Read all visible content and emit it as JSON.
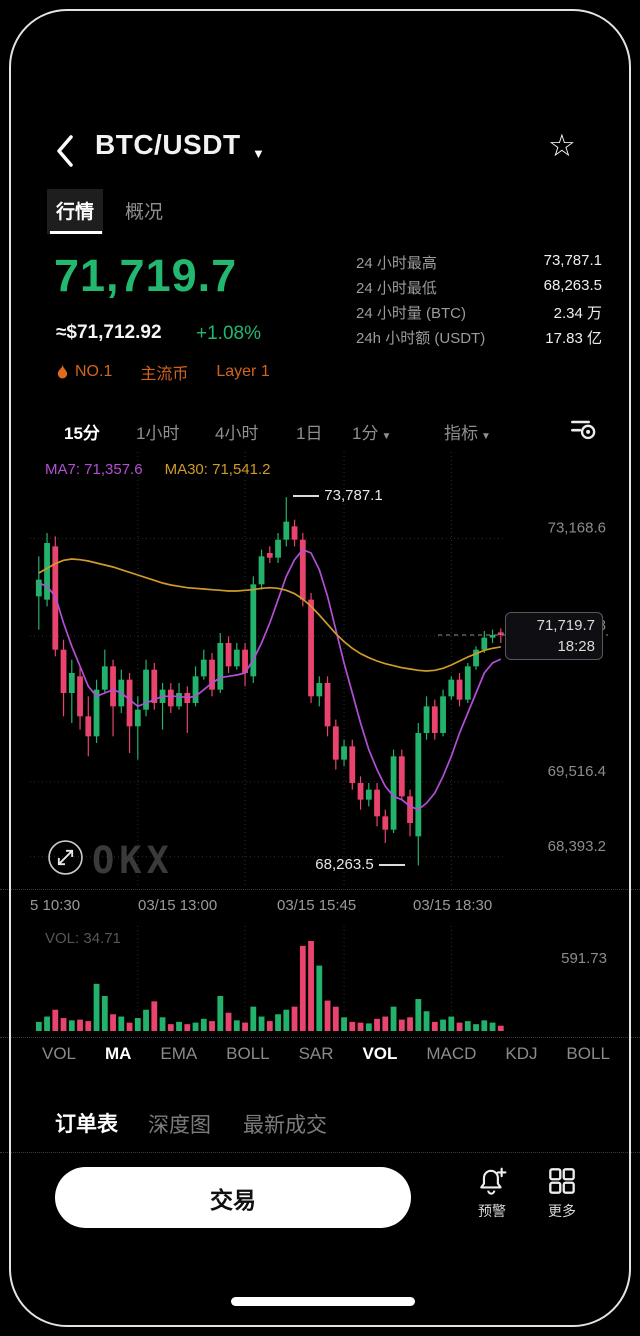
{
  "header": {
    "title": "BTC/USDT"
  },
  "tabs": {
    "items": [
      {
        "label": "行情"
      },
      {
        "label": "概况"
      }
    ]
  },
  "price": {
    "last": "71,719.7",
    "fiat": "≈$71,712.92",
    "change": "+1.08%"
  },
  "badges": {
    "rank": "NO.1",
    "tag1": "主流币",
    "tag2": "Layer 1"
  },
  "stats": {
    "rows": [
      {
        "label": "24 小时最高",
        "value": "73,787.1"
      },
      {
        "label": "24 小时最低",
        "value": "68,263.5"
      },
      {
        "label": "24 小时量 (BTC)",
        "value": "2.34 万"
      },
      {
        "label": "24h 小时额 (USDT)",
        "value": "17.83 亿"
      }
    ]
  },
  "intervals": {
    "i0": "15分",
    "i1": "1小时",
    "i2": "4小时",
    "i3": "1日",
    "d1": "1分",
    "d2": "指标"
  },
  "indicators": {
    "items": [
      "VOL",
      "MA",
      "EMA",
      "BOLL",
      "SAR",
      "VOL",
      "MACD",
      "KDJ",
      "BOLL"
    ]
  },
  "bottom_tabs": {
    "t0": "订单表",
    "t1": "深度图",
    "t2": "最新成交"
  },
  "actions": {
    "trade": "交易",
    "alert": "预警",
    "more": "更多"
  },
  "chart_data": {
    "type": "candlestick",
    "symbol": "BTC/USDT",
    "interval": "15分",
    "ylim": [
      67970,
      74420
    ],
    "yticks": [
      {
        "label": "73,168.6",
        "value": 73168.6
      },
      {
        "label": "71,702.8",
        "value": 71702.8
      },
      {
        "label": "69,516.4",
        "value": 69516.4
      },
      {
        "label": "68,393.2",
        "value": 68393.2
      }
    ],
    "xticks": [
      "5 10:30",
      "03/15 13:00",
      "03/15 15:45",
      "03/15 18:30"
    ],
    "xtick_indices": [
      12,
      25,
      37,
      50
    ],
    "ma_labels": {
      "ma7": "MA7: 71,357.6",
      "ma30": "MA30: 71,541.2"
    },
    "annotations": {
      "high": {
        "text": "73,787.1",
        "index": 30,
        "value": 73787.1
      },
      "low": {
        "text": "68,263.5",
        "index": 46,
        "value": 68263.5
      }
    },
    "price_tag": {
      "price": "71,719.7",
      "time": "18:28"
    },
    "colors": {
      "up": "#23b26b",
      "down": "#e8446d",
      "ma7": "#b34fd6",
      "ma30": "#cf9b2a"
    },
    "candles": [
      [
        72300,
        72900,
        71800,
        72550
      ],
      [
        72250,
        73250,
        72150,
        73100
      ],
      [
        73050,
        73200,
        71400,
        71500
      ],
      [
        71500,
        71650,
        70500,
        70850
      ],
      [
        70850,
        71350,
        70400,
        71150
      ],
      [
        71100,
        71250,
        70300,
        70500
      ],
      [
        70500,
        70800,
        69900,
        70200
      ],
      [
        70200,
        71050,
        70100,
        70900
      ],
      [
        70900,
        71500,
        70850,
        71250
      ],
      [
        71250,
        71350,
        70200,
        70650
      ],
      [
        70650,
        71200,
        70550,
        71050
      ],
      [
        71050,
        71150,
        69950,
        70350
      ],
      [
        70350,
        70800,
        69850,
        70600
      ],
      [
        70600,
        71350,
        70500,
        71200
      ],
      [
        71200,
        71300,
        70600,
        70700
      ],
      [
        70700,
        71000,
        70300,
        70900
      ],
      [
        70900,
        71000,
        70550,
        70650
      ],
      [
        70650,
        71000,
        70600,
        70850
      ],
      [
        70850,
        70950,
        70250,
        70700
      ],
      [
        70700,
        71250,
        70650,
        71100
      ],
      [
        71100,
        71500,
        71050,
        71350
      ],
      [
        71350,
        71450,
        70800,
        70900
      ],
      [
        70900,
        71750,
        70850,
        71600
      ],
      [
        71600,
        71700,
        71150,
        71250
      ],
      [
        71250,
        71600,
        71200,
        71500
      ],
      [
        71500,
        71600,
        70950,
        71150
      ],
      [
        71100,
        72600,
        71000,
        72480
      ],
      [
        72480,
        73000,
        72400,
        72900
      ],
      [
        72950,
        73050,
        72800,
        72880
      ],
      [
        72880,
        73250,
        72800,
        73150
      ],
      [
        73150,
        73787.1,
        73050,
        73420
      ],
      [
        73350,
        73450,
        73050,
        73150
      ],
      [
        73150,
        73250,
        72150,
        72250
      ],
      [
        72250,
        72350,
        70700,
        70800
      ],
      [
        70800,
        71100,
        70650,
        71000
      ],
      [
        71000,
        71100,
        70200,
        70350
      ],
      [
        70350,
        70450,
        69700,
        69850
      ],
      [
        69850,
        70150,
        69750,
        70050
      ],
      [
        70050,
        70150,
        69400,
        69500
      ],
      [
        69500,
        69600,
        69100,
        69250
      ],
      [
        69250,
        69500,
        69150,
        69400
      ],
      [
        69400,
        69500,
        68850,
        69000
      ],
      [
        69000,
        69100,
        68600,
        68800
      ],
      [
        68800,
        70000,
        68750,
        69900
      ],
      [
        69900,
        70000,
        69250,
        69300
      ],
      [
        69300,
        69400,
        68700,
        68900
      ],
      [
        68700,
        70400,
        68263.5,
        70250
      ],
      [
        70250,
        70800,
        70150,
        70650
      ],
      [
        70650,
        70750,
        70150,
        70250
      ],
      [
        70250,
        70900,
        70200,
        70800
      ],
      [
        70800,
        71100,
        70750,
        71050
      ],
      [
        71050,
        71150,
        70650,
        70750
      ],
      [
        70750,
        71300,
        70700,
        71250
      ],
      [
        71250,
        71550,
        71200,
        71500
      ],
      [
        71500,
        71780,
        71450,
        71680
      ],
      [
        71680,
        71800,
        71600,
        71720
      ],
      [
        71760,
        71820,
        71600,
        71719.7
      ]
    ],
    "series": [
      {
        "name": "MA7",
        "values": [
          72500,
          72450,
          72300,
          71900,
          71550,
          71250,
          70950,
          70800,
          70850,
          70900,
          70850,
          70750,
          70650,
          70700,
          70750,
          70800,
          70800,
          70800,
          70780,
          70800,
          70900,
          71000,
          71080,
          71100,
          71120,
          71150,
          71350,
          71600,
          71900,
          72250,
          72600,
          72850,
          73000,
          72950,
          72700,
          72300,
          71800,
          71300,
          70850,
          70400,
          70000,
          69700,
          69450,
          69300,
          69250,
          69150,
          69100,
          69200,
          69350,
          69600,
          69900,
          70250,
          70550,
          70850,
          71150,
          71300,
          71357.6
        ]
      },
      {
        "name": "MA30",
        "values": [
          72650,
          72720,
          72790,
          72840,
          72860,
          72850,
          72830,
          72800,
          72770,
          72740,
          72700,
          72660,
          72620,
          72580,
          72540,
          72500,
          72470,
          72450,
          72430,
          72420,
          72410,
          72400,
          72390,
          72380,
          72380,
          72390,
          72400,
          72420,
          72430,
          72420,
          72390,
          72340,
          72260,
          72150,
          72020,
          71880,
          71740,
          71620,
          71520,
          71440,
          71380,
          71330,
          71290,
          71260,
          71230,
          71210,
          71190,
          71180,
          71190,
          71220,
          71270,
          71330,
          71390,
          71440,
          71490,
          71520,
          71541.2
        ]
      }
    ],
    "volume": {
      "current_label": "VOL: 34.71",
      "max_label": "591.73",
      "max": 591.73,
      "values": [
        60,
        95,
        140,
        85,
        70,
        75,
        65,
        310,
        230,
        110,
        95,
        55,
        85,
        140,
        195,
        90,
        45,
        60,
        45,
        55,
        80,
        65,
        230,
        120,
        70,
        55,
        160,
        95,
        65,
        110,
        140,
        160,
        560,
        591.73,
        430,
        200,
        160,
        90,
        60,
        55,
        50,
        80,
        95,
        160,
        75,
        90,
        210,
        130,
        60,
        75,
        95,
        55,
        65,
        45,
        70,
        55,
        34.71
      ]
    }
  }
}
